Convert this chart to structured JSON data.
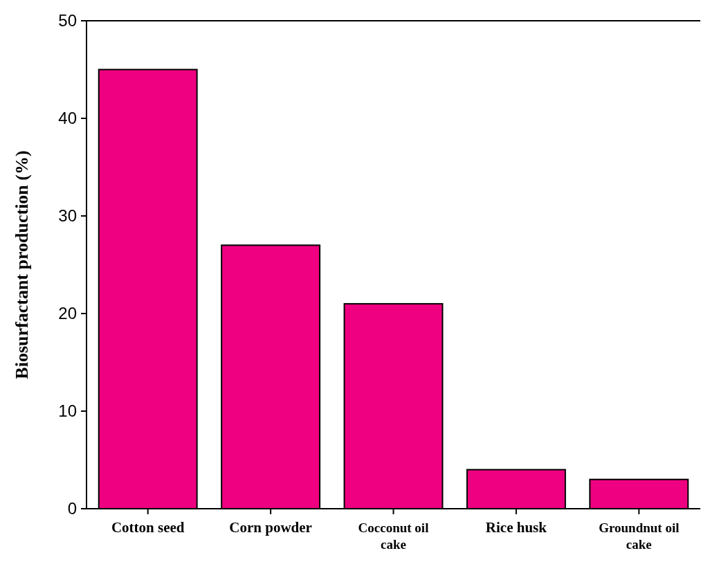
{
  "chart_data": {
    "type": "bar",
    "ylabel": "Biosurfactant production (%)",
    "categories": [
      "Cotton seed",
      "Corn powder",
      "Cocconut oil cake",
      "Rice husk",
      "Groundnut oil cake"
    ],
    "values": [
      45,
      27,
      21,
      4,
      3
    ],
    "color": "#ee0080",
    "ylim": [
      0,
      50
    ],
    "yticks": [
      0,
      10,
      20,
      30,
      40,
      50
    ]
  }
}
